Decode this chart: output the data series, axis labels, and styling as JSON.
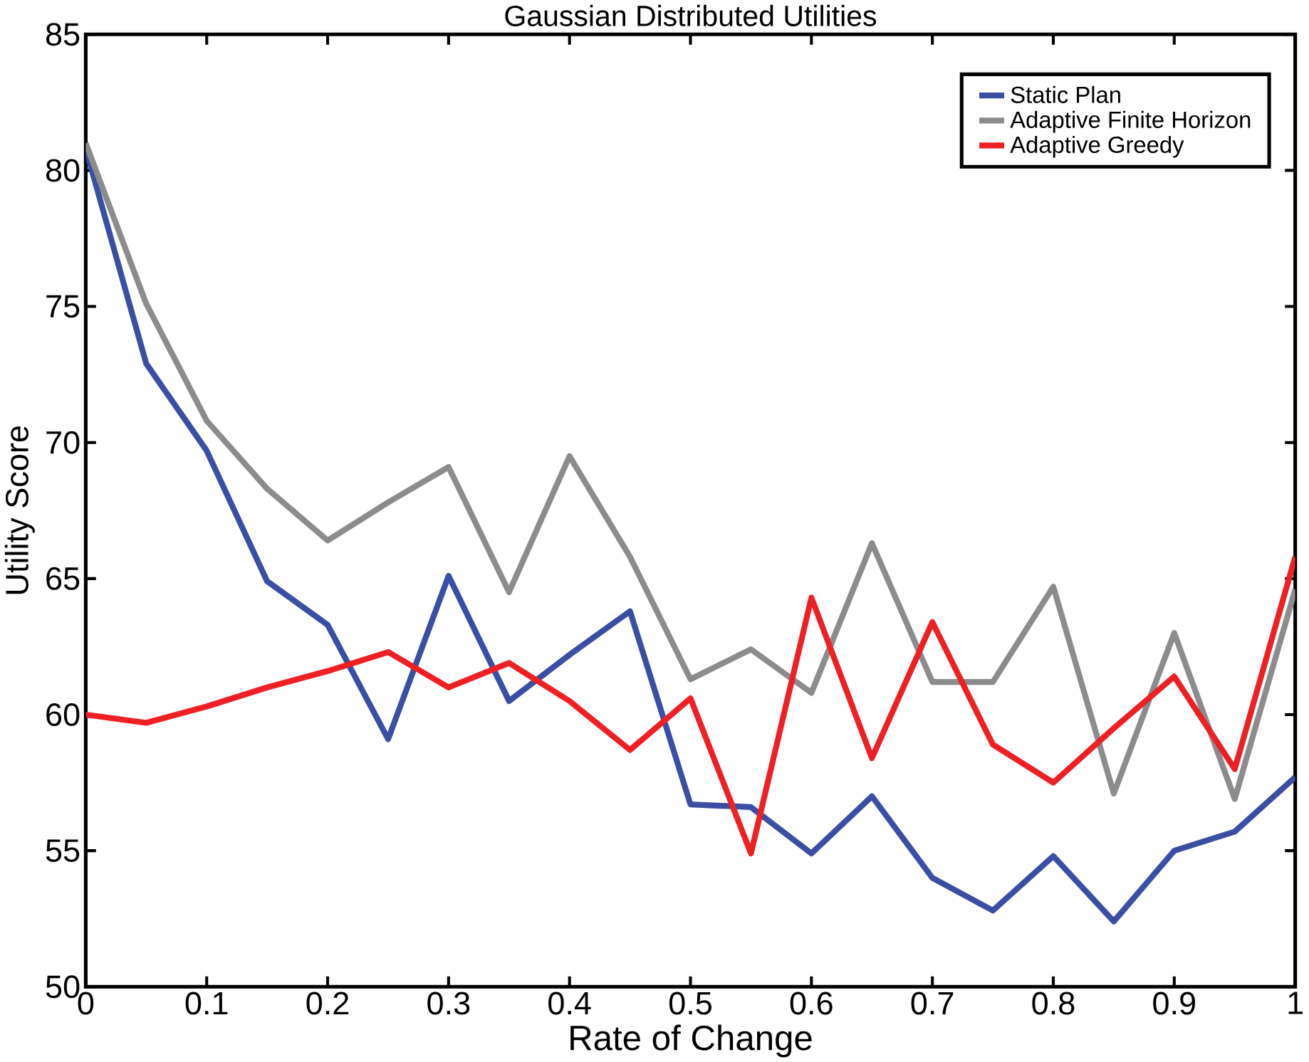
{
  "chart_data": {
    "type": "line",
    "title": "Gaussian Distributed Utilities",
    "xlabel": "Rate of Change",
    "ylabel": "Utility Score",
    "x": [
      0,
      0.05,
      0.1,
      0.15,
      0.2,
      0.25,
      0.3,
      0.35,
      0.4,
      0.45,
      0.5,
      0.55,
      0.6,
      0.65,
      0.7,
      0.75,
      0.8,
      0.85,
      0.9,
      0.95,
      1
    ],
    "series": [
      {
        "name": "Static Plan",
        "color": "#3a4fa3",
        "values": [
          80.8,
          72.9,
          69.7,
          64.9,
          63.3,
          59.1,
          65.1,
          60.5,
          62.2,
          63.8,
          56.7,
          56.6,
          54.9,
          57.0,
          54.0,
          52.8,
          54.8,
          52.4,
          55.0,
          55.7,
          57.7
        ]
      },
      {
        "name": "Adaptive Finite Horizon",
        "color": "#8c8c8c",
        "values": [
          81.0,
          75.1,
          70.8,
          68.3,
          66.4,
          67.8,
          69.1,
          64.5,
          69.5,
          65.8,
          61.3,
          62.4,
          60.8,
          66.3,
          61.2,
          61.2,
          64.7,
          57.1,
          63.0,
          56.9,
          64.6
        ]
      },
      {
        "name": "Adaptive Greedy",
        "color": "#ee2024",
        "values": [
          60.0,
          59.7,
          60.3,
          61.0,
          61.6,
          62.3,
          61.0,
          61.9,
          60.5,
          58.7,
          60.6,
          54.9,
          64.3,
          58.4,
          63.4,
          58.9,
          57.5,
          59.5,
          61.4,
          58.0,
          65.8
        ]
      }
    ],
    "xlim": [
      0,
      1
    ],
    "ylim": [
      50,
      85
    ],
    "xticks": [
      0,
      0.1,
      0.2,
      0.3,
      0.4,
      0.5,
      0.6,
      0.7,
      0.8,
      0.9,
      1
    ],
    "yticks": [
      50,
      55,
      60,
      65,
      70,
      75,
      80,
      85
    ],
    "grid": false,
    "legend": "top right",
    "line_style": "solid",
    "marker": "none"
  }
}
